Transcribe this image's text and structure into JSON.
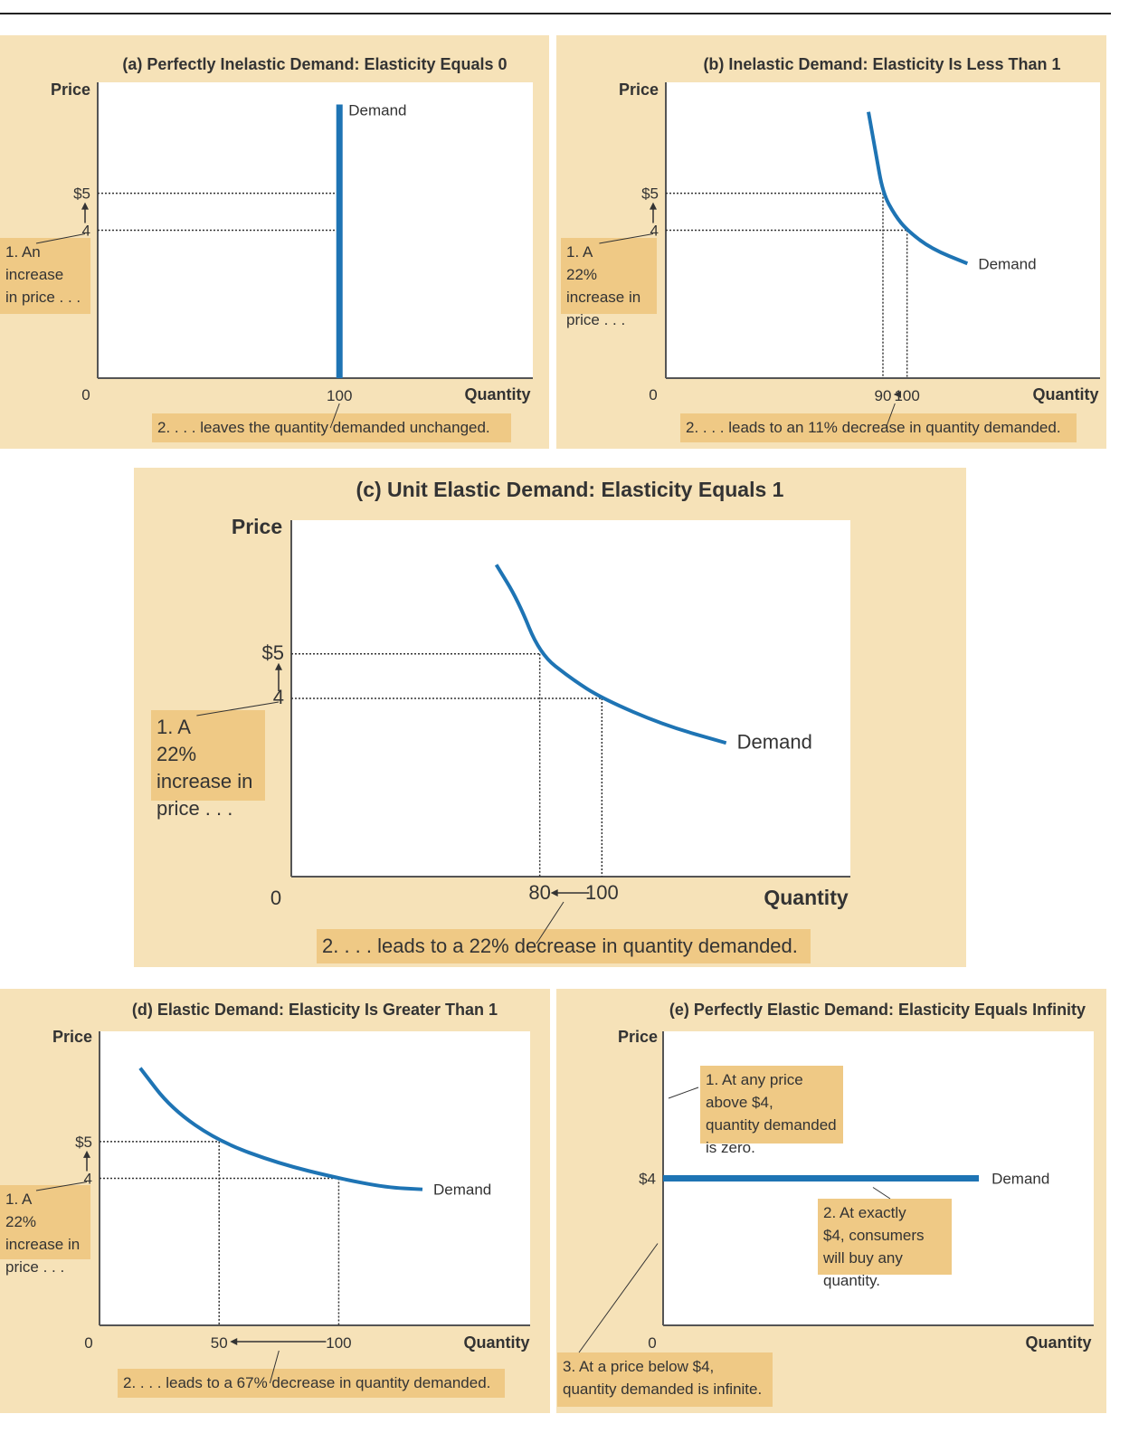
{
  "colors": {
    "panel_background": "#F6E2B8",
    "plot_background": "#FFFFFF",
    "callout_background": "#EFC985",
    "demand_curve": "#1E74B4",
    "axis": "#555555",
    "text": "#333333",
    "rule": "#222222"
  },
  "chart_data": [
    {
      "id": "a",
      "type": "line",
      "title": "(a) Perfectly Inelastic Demand: Elasticity Equals 0",
      "xlabel": "Quantity",
      "ylabel": "Price",
      "origin_label": "0",
      "xlim": [
        0,
        180
      ],
      "ylim": [
        0,
        8
      ],
      "series": [
        {
          "name": "Demand",
          "points": [
            [
              100,
              0
            ],
            [
              100,
              7.4
            ]
          ]
        }
      ],
      "price_ticks": [
        {
          "value": 5,
          "label": "$5"
        },
        {
          "value": 4,
          "label": "4"
        }
      ],
      "quantity_ticks": [
        {
          "value": 100,
          "label": "100"
        }
      ],
      "annotations": [
        "1. An increase in price . . .",
        "2. . . . leaves the quantity demanded unchanged."
      ]
    },
    {
      "id": "b",
      "type": "line",
      "title": "(b) Inelastic Demand: Elasticity Is Less Than 1",
      "xlabel": "Quantity",
      "ylabel": "Price",
      "origin_label": "0",
      "xlim": [
        0,
        180
      ],
      "ylim": [
        0,
        8
      ],
      "series": [
        {
          "name": "Demand",
          "points": [
            [
              84,
              7.2
            ],
            [
              87,
              6.1
            ],
            [
              90,
              5
            ],
            [
              95,
              4.4
            ],
            [
              100,
              4
            ],
            [
              110,
              3.5
            ],
            [
              125,
              3.1
            ]
          ]
        }
      ],
      "price_ticks": [
        {
          "value": 5,
          "label": "$5"
        },
        {
          "value": 4,
          "label": "4"
        }
      ],
      "quantity_ticks": [
        {
          "value": 90,
          "label": "90"
        },
        {
          "value": 100,
          "label": "100"
        }
      ],
      "annotations": [
        "1. A 22% increase in price . . .",
        "2. . . . leads to an 11% decrease in quantity demanded."
      ]
    },
    {
      "id": "c",
      "type": "line",
      "title": "(c) Unit Elastic Demand: Elasticity Equals 1",
      "xlabel": "Quantity",
      "ylabel": "Price",
      "origin_label": "0",
      "xlim": [
        0,
        180
      ],
      "ylim": [
        0,
        8
      ],
      "series": [
        {
          "name": "Demand",
          "points": [
            [
              66,
              7
            ],
            [
              73,
              6.2
            ],
            [
              80,
              5
            ],
            [
              90,
              4.45
            ],
            [
              100,
              4
            ],
            [
              120,
              3.4
            ],
            [
              140,
              3
            ]
          ]
        }
      ],
      "price_ticks": [
        {
          "value": 5,
          "label": "$5"
        },
        {
          "value": 4,
          "label": "4"
        }
      ],
      "quantity_ticks": [
        {
          "value": 80,
          "label": "80"
        },
        {
          "value": 100,
          "label": "100"
        }
      ],
      "annotations": [
        "1. A 22% increase in price . . .",
        "2. . . . leads to a 22% decrease in quantity demanded."
      ]
    },
    {
      "id": "d",
      "type": "line",
      "title": "(d) Elastic Demand: Elasticity Is Greater Than 1",
      "xlabel": "Quantity",
      "ylabel": "Price",
      "origin_label": "0",
      "xlim": [
        0,
        180
      ],
      "ylim": [
        0,
        8
      ],
      "series": [
        {
          "name": "Demand",
          "points": [
            [
              17,
              7
            ],
            [
              30,
              5.9
            ],
            [
              50,
              5
            ],
            [
              75,
              4.4
            ],
            [
              100,
              4
            ],
            [
              120,
              3.75
            ],
            [
              135,
              3.7
            ]
          ]
        }
      ],
      "price_ticks": [
        {
          "value": 5,
          "label": "$5"
        },
        {
          "value": 4,
          "label": "4"
        }
      ],
      "quantity_ticks": [
        {
          "value": 50,
          "label": "50"
        },
        {
          "value": 100,
          "label": "100"
        }
      ],
      "annotations": [
        "1. A 22% increase in price . . .",
        "2. . . . leads to a 67% decrease in quantity demanded."
      ]
    },
    {
      "id": "e",
      "type": "line",
      "title": "(e) Perfectly Elastic Demand: Elasticity Equals Infinity",
      "xlabel": "Quantity",
      "ylabel": "Price",
      "origin_label": "0",
      "xlim": [
        0,
        180
      ],
      "ylim": [
        0,
        8
      ],
      "series": [
        {
          "name": "Demand",
          "points": [
            [
              0,
              4
            ],
            [
              132,
              4
            ]
          ]
        }
      ],
      "price_ticks": [
        {
          "value": 4,
          "label": "$4"
        }
      ],
      "quantity_ticks": [],
      "annotations": [
        "1. At any price above $4, quantity demanded is zero.",
        "2. At exactly $4, consumers will buy any quantity.",
        "3. At a price below $4, quantity demanded is infinite."
      ]
    }
  ]
}
